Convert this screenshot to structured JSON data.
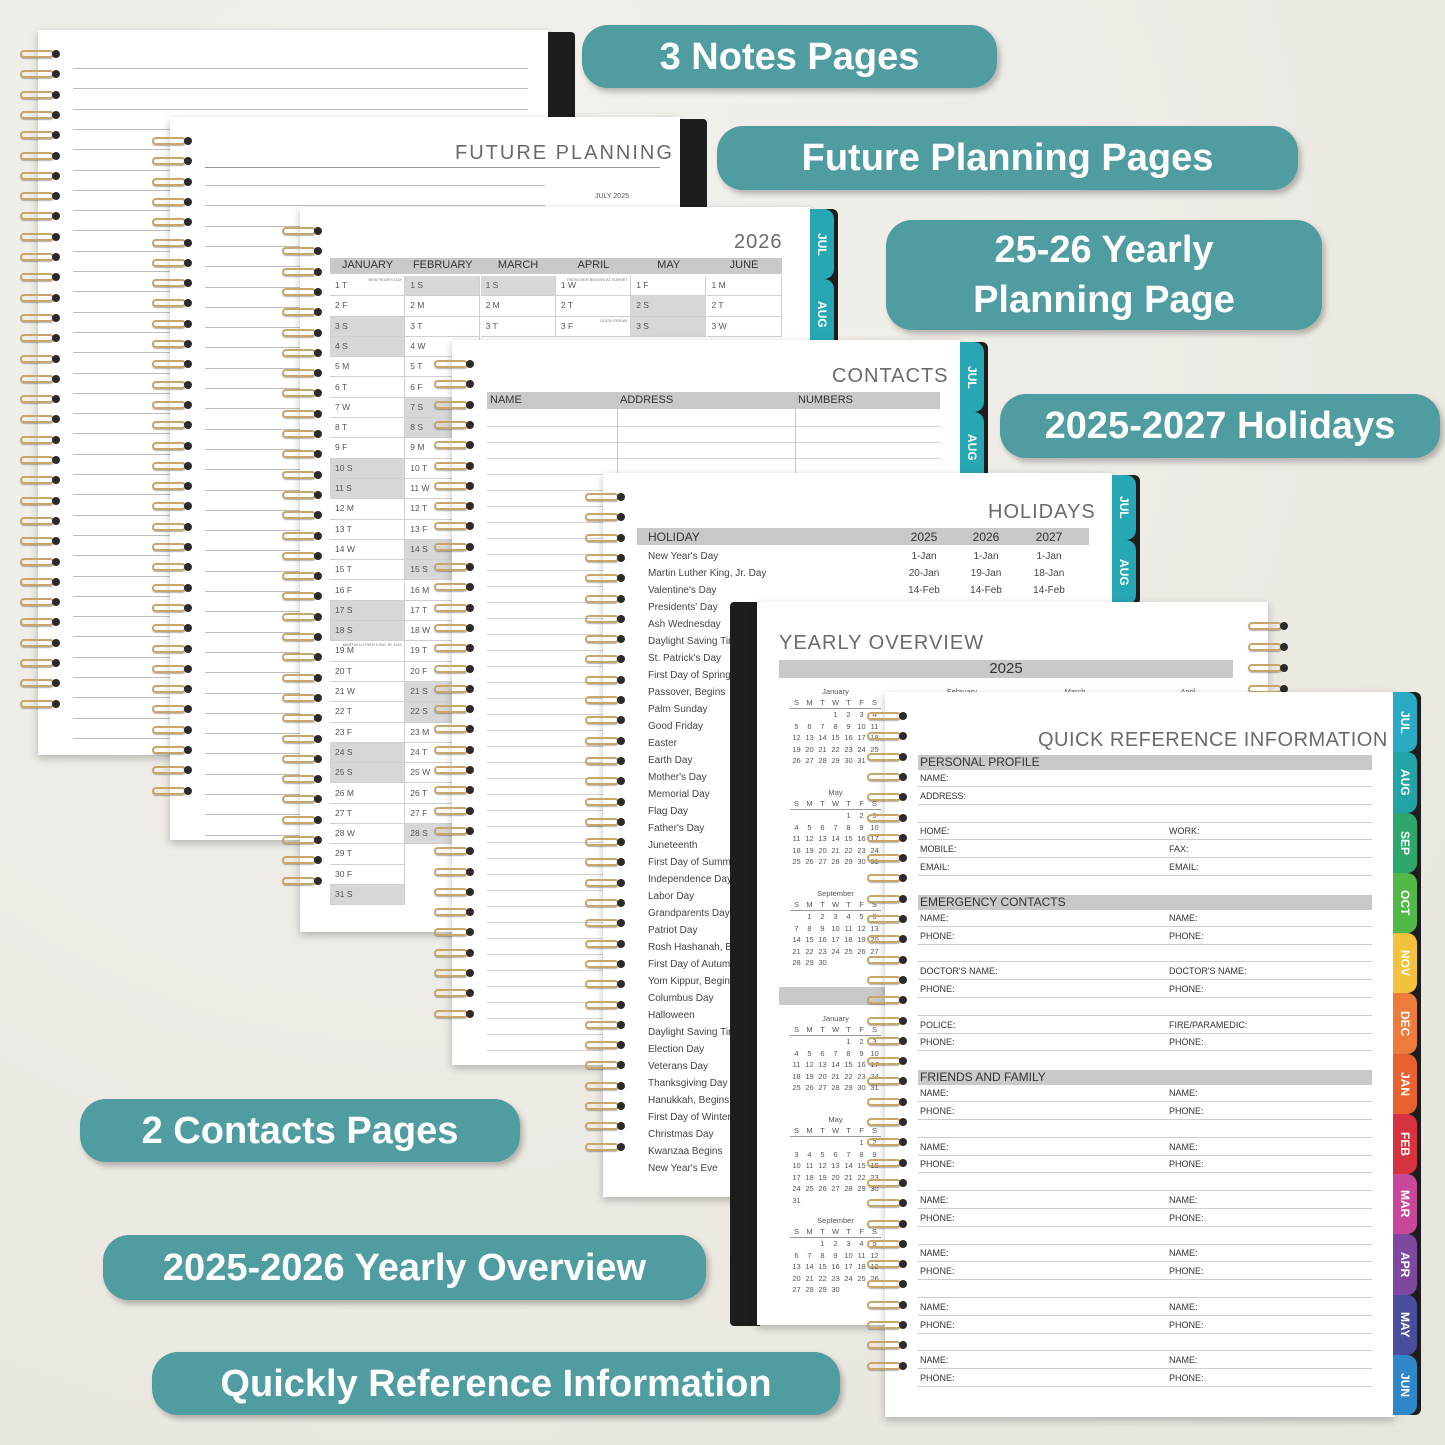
{
  "labels": {
    "notes": "3 Notes Pages",
    "future": "Future Planning Pages",
    "yearly_planning": [
      "25-26 Yearly",
      "Planning Page"
    ],
    "holidays": "2025-2027 Holidays",
    "contacts": "2 Contacts Pages",
    "yearly_overview": "2025-2026 Yearly Overview",
    "quick_ref": "Quickly Reference Information"
  },
  "colors": {
    "label_bg": "#4f9ca1",
    "coil": "#c8a66a",
    "spine": "#1d1d1d",
    "band": "#c9c9c9",
    "tab_teal": "#27a7b3"
  },
  "future_planning": {
    "title": "FUTURE PLANNING",
    "month": "JULY 2025"
  },
  "yearly_planning": {
    "year": "2026",
    "months": [
      "JANUARY",
      "FEBRUARY",
      "MARCH",
      "APRIL",
      "MAY",
      "JUNE"
    ],
    "days": [
      [
        "1 T",
        "2 F",
        "3 S",
        "4 S",
        "5 M",
        "6 T",
        "7 W",
        "8 T",
        "9 F",
        "10 S",
        "11 S",
        "12 M",
        "13 T",
        "14 W",
        "15 T",
        "16 F",
        "17 S",
        "18 S",
        "19 M",
        "20 T",
        "21 W",
        "22 T",
        "23 F",
        "24 S",
        "25 S",
        "26 M",
        "27 T",
        "28 W",
        "29 T",
        "30 F",
        "31 S"
      ],
      [
        "1 S",
        "2 M",
        "3 T",
        "4 W",
        "5 T",
        "6 F",
        "7 S",
        "8 S",
        "9 M",
        "10 T",
        "11 W",
        "12 T",
        "13 F",
        "14 S",
        "15 S",
        "16 M",
        "17 T",
        "18 W",
        "19 T",
        "20 F",
        "21 S",
        "22 S",
        "23 M",
        "24 T",
        "25 W",
        "26 T",
        "27 F",
        "28 S"
      ],
      [
        "1 S",
        "2 M",
        "3 T"
      ],
      [
        "1 W",
        "2 T",
        "3 F"
      ],
      [
        "1 F",
        "2 S",
        "3 S"
      ],
      [
        "1 M",
        "2 T",
        "3 W"
      ]
    ],
    "notes": [
      {
        "m": 0,
        "d": 0,
        "text": "NEW YEAR'S DAY"
      },
      {
        "m": 3,
        "d": 0,
        "text": "PASSOVER BEGINS AT SUNSET"
      },
      {
        "m": 3,
        "d": 2,
        "text": "GOOD FRIDAY"
      },
      {
        "m": 0,
        "d": 18,
        "text": "MARTIN LUTHER KING JR. DAY"
      }
    ],
    "tabs": [
      "JUL",
      "AUG"
    ]
  },
  "contacts": {
    "title": "CONTACTS",
    "columns": [
      "NAME",
      "ADDRESS",
      "NUMBERS"
    ],
    "tabs": [
      "JUL",
      "AUG"
    ]
  },
  "holidays": {
    "title": "HOLIDAYS",
    "columns": [
      "HOLIDAY",
      "2025",
      "2026",
      "2027"
    ],
    "rows": [
      [
        "New Year's Day",
        "1-Jan",
        "1-Jan",
        "1-Jan"
      ],
      [
        "Martin Luther King, Jr. Day",
        "20-Jan",
        "19-Jan",
        "18-Jan"
      ],
      [
        "Valentine's Day",
        "14-Feb",
        "14-Feb",
        "14-Feb"
      ],
      [
        "Presidents' Day"
      ],
      [
        "Ash Wednesday"
      ],
      [
        "Daylight Saving Time Begins"
      ],
      [
        "St. Patrick's Day"
      ],
      [
        "First Day of Spring"
      ],
      [
        "Passover, Begins"
      ],
      [
        "Palm Sunday"
      ],
      [
        "Good Friday"
      ],
      [
        "Easter"
      ],
      [
        "Earth Day"
      ],
      [
        "Mother's Day"
      ],
      [
        "Memorial Day"
      ],
      [
        "Flag Day"
      ],
      [
        "Father's Day"
      ],
      [
        "Juneteenth"
      ],
      [
        "First Day of Summer"
      ],
      [
        "Independence Day"
      ],
      [
        "Labor Day"
      ],
      [
        "Grandparents Day"
      ],
      [
        "Patriot Day"
      ],
      [
        "Rosh Hashanah, Begins"
      ],
      [
        "First Day of Autumn"
      ],
      [
        "Yom Kippur, Begins"
      ],
      [
        "Columbus Day"
      ],
      [
        "Halloween"
      ],
      [
        "Daylight Saving Time Ends"
      ],
      [
        "Election Day"
      ],
      [
        "Veterans Day"
      ],
      [
        "Thanksgiving Day"
      ],
      [
        "Hanukkah, Begins"
      ],
      [
        "First Day of Winter"
      ],
      [
        "Christmas Day"
      ],
      [
        "Kwanzaa Begins"
      ],
      [
        "New Year's Eve"
      ]
    ],
    "tabs": [
      "JUL",
      "AUG"
    ]
  },
  "yearly_overview": {
    "title": "YEARLY OVERVIEW",
    "year": "2025",
    "weekdays": [
      "S",
      "M",
      "T",
      "W",
      "T",
      "F",
      "S"
    ],
    "top_months": [
      "February",
      "March",
      "April"
    ],
    "sections": [
      [
        {
          "name": "January",
          "start": 3,
          "days": 31
        },
        {
          "name": "May",
          "start": 4,
          "days": 31
        },
        {
          "name": "September",
          "start": 1,
          "days": 30
        }
      ],
      [
        {
          "name": "January",
          "start": 4,
          "days": 31
        },
        {
          "name": "May",
          "start": 5,
          "days": 31
        },
        {
          "name": "September",
          "start": 2,
          "days": 30
        }
      ]
    ]
  },
  "quick_reference": {
    "title": "QUICK REFERENCE INFORMATION",
    "sections": [
      {
        "heading": "PERSONAL PROFILE",
        "rows": [
          [
            "NAME:",
            ""
          ],
          [
            "ADDRESS:",
            ""
          ],
          [
            "",
            ""
          ],
          [
            "HOME:",
            "WORK:"
          ],
          [
            "MOBILE:",
            "FAX:"
          ],
          [
            "EMAIL:",
            "EMAIL:"
          ]
        ]
      },
      {
        "heading": "EMERGENCY CONTACTS",
        "rows": [
          [
            "NAME:",
            "NAME:"
          ],
          [
            "PHONE:",
            "PHONE:"
          ],
          [
            "",
            ""
          ],
          [
            "DOCTOR'S NAME:",
            "DOCTOR'S NAME:"
          ],
          [
            "PHONE:",
            "PHONE:"
          ],
          [
            "",
            ""
          ],
          [
            "POLICE:",
            "FIRE/PARAMEDIC:"
          ],
          [
            "PHONE:",
            "PHONE:"
          ]
        ]
      },
      {
        "heading": "FRIENDS AND FAMILY",
        "rows": [
          [
            "NAME:",
            "NAME:"
          ],
          [
            "PHONE:",
            "PHONE:"
          ],
          [
            "",
            ""
          ],
          [
            "NAME:",
            "NAME:"
          ],
          [
            "PHONE:",
            "PHONE:"
          ],
          [
            "",
            ""
          ],
          [
            "NAME:",
            "NAME:"
          ],
          [
            "PHONE:",
            "PHONE:"
          ],
          [
            "",
            ""
          ],
          [
            "NAME:",
            "NAME:"
          ],
          [
            "PHONE:",
            "PHONE:"
          ],
          [
            "",
            ""
          ],
          [
            "NAME:",
            "NAME:"
          ],
          [
            "PHONE:",
            "PHONE:"
          ],
          [
            "",
            ""
          ],
          [
            "NAME:",
            "NAME:"
          ],
          [
            "PHONE:",
            "PHONE:"
          ]
        ]
      }
    ],
    "tabs": [
      {
        "label": "JUL",
        "color": "#29a9c4"
      },
      {
        "label": "AUG",
        "color": "#22a3a6"
      },
      {
        "label": "SEP",
        "color": "#2ea86a"
      },
      {
        "label": "OCT",
        "color": "#52b848"
      },
      {
        "label": "NOV",
        "color": "#f2c33a"
      },
      {
        "label": "DEC",
        "color": "#ee7b3a"
      },
      {
        "label": "JAN",
        "color": "#e8612e"
      },
      {
        "label": "FEB",
        "color": "#d9323f"
      },
      {
        "label": "MAR",
        "color": "#c9479a"
      },
      {
        "label": "APR",
        "color": "#7e47a0"
      },
      {
        "label": "MAY",
        "color": "#4a4d9c"
      },
      {
        "label": "JUN",
        "color": "#2f86c8"
      }
    ]
  }
}
